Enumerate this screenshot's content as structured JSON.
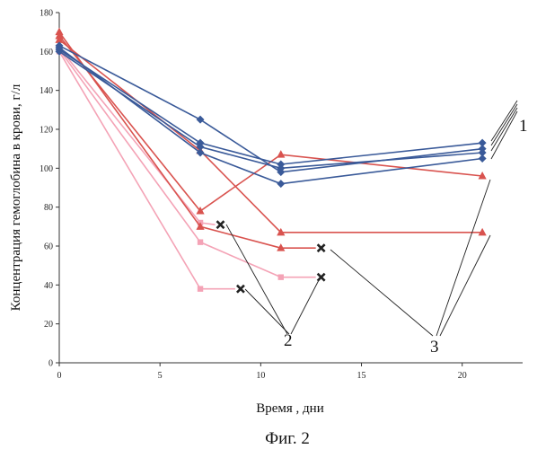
{
  "chart_data": {
    "type": "line",
    "xlabel": "Время , дни",
    "ylabel": "Концентрация гемоглобина в крови,  г/л",
    "caption": "Фиг. 2",
    "xlim": [
      0,
      23
    ],
    "ylim": [
      0,
      180
    ],
    "xticks": [
      0,
      5,
      10,
      15,
      20
    ],
    "yticks": [
      0,
      20,
      40,
      60,
      80,
      100,
      120,
      140,
      160,
      180
    ],
    "grid": false,
    "colors": {
      "group1": "#3a5a99",
      "group2": "#f4a3b6",
      "group3": "#d9534f",
      "end_marker": "#222222",
      "axis": "#333333"
    },
    "markers": {
      "group1": "diamond",
      "group2": "square",
      "group3": "triangle"
    },
    "callouts": [
      "1",
      "2",
      "3"
    ],
    "series": [
      {
        "group": "group1",
        "x": [
          0,
          7,
          11,
          21
        ],
        "y": [
          163,
          125,
          98,
          110
        ]
      },
      {
        "group": "group1",
        "x": [
          0,
          7,
          11,
          21
        ],
        "y": [
          161,
          113,
          102,
          113
        ]
      },
      {
        "group": "group1",
        "x": [
          0,
          7,
          11,
          21
        ],
        "y": [
          160,
          111,
          100,
          108
        ]
      },
      {
        "group": "group1",
        "x": [
          0,
          7,
          11,
          21
        ],
        "y": [
          162,
          108,
          92,
          105
        ]
      },
      {
        "group": "group2",
        "x": [
          0,
          7,
          8
        ],
        "y": [
          162,
          72,
          71
        ],
        "end": "x"
      },
      {
        "group": "group2",
        "x": [
          0,
          7,
          11,
          13
        ],
        "y": [
          161,
          62,
          44,
          44
        ],
        "end": "x"
      },
      {
        "group": "group2",
        "x": [
          0,
          7,
          9
        ],
        "y": [
          160,
          38,
          38
        ],
        "end": "x"
      },
      {
        "group": "group3",
        "x": [
          0,
          7,
          11,
          21
        ],
        "y": [
          168,
          78,
          107,
          96
        ]
      },
      {
        "group": "group3",
        "x": [
          0,
          7,
          11,
          21
        ],
        "y": [
          166,
          109,
          67,
          67
        ]
      },
      {
        "group": "group3",
        "x": [
          0,
          7,
          11,
          13
        ],
        "y": [
          170,
          70,
          59,
          59
        ],
        "end": "x"
      }
    ]
  }
}
